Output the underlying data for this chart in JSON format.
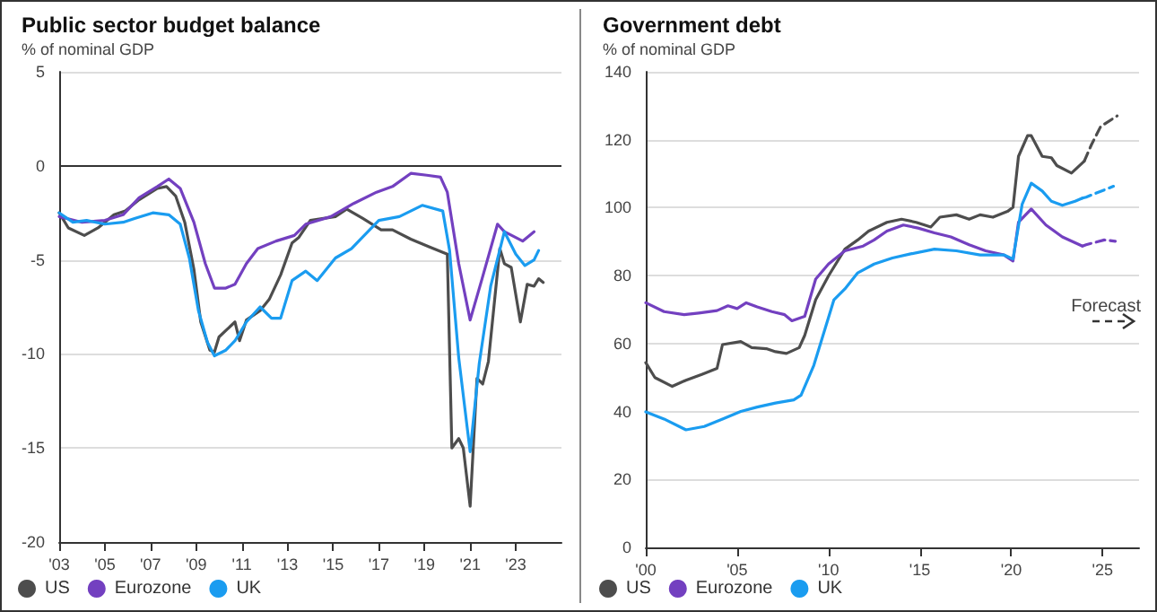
{
  "chart_data": [
    {
      "type": "line",
      "title": "Public sector budget balance",
      "subtitle": "% of nominal GDP",
      "xlim": [
        2003,
        2025
      ],
      "xticks": [
        {
          "value": 2003,
          "label": "'03"
        },
        {
          "value": 2005,
          "label": "'05"
        },
        {
          "value": 2007,
          "label": "'07"
        },
        {
          "value": 2009,
          "label": "'09"
        },
        {
          "value": 2011,
          "label": "'11"
        },
        {
          "value": 2013,
          "label": "'13"
        },
        {
          "value": 2015,
          "label": "'15"
        },
        {
          "value": 2017,
          "label": "'17"
        },
        {
          "value": 2019,
          "label": "'19"
        },
        {
          "value": 2021,
          "label": "'21"
        },
        {
          "value": 2023,
          "label": "'23"
        }
      ],
      "ylim": [
        -20,
        5
      ],
      "yticks": [
        -20,
        -15,
        -10,
        -5,
        0,
        5
      ],
      "grid": "y",
      "legend": "bottom left",
      "marker": "none",
      "line_style": "solid",
      "ref_lines": [
        {
          "axis": "y",
          "value": 0,
          "color": "#333333"
        }
      ],
      "series": [
        {
          "name": "US",
          "color": "#4d4d4d",
          "x": [
            2003.0,
            2003.4,
            2004.1,
            2004.7,
            2005.4,
            2005.9,
            2006.5,
            2007.3,
            2007.7,
            2008.1,
            2008.5,
            2008.9,
            2009.2,
            2009.6,
            2009.8,
            2010.0,
            2010.7,
            2010.9,
            2011.2,
            2011.8,
            2012.2,
            2012.7,
            2013.2,
            2013.5,
            2014.0,
            2015.1,
            2015.6,
            2016.3,
            2017.1,
            2017.6,
            2018.4,
            2019.2,
            2020.0,
            2020.2,
            2020.5,
            2020.7,
            2021.0,
            2021.3,
            2021.55,
            2021.8,
            2022.3,
            2022.5,
            2022.8,
            2023.2,
            2023.5,
            2023.8,
            2024.0,
            2024.2
          ],
          "values": [
            -2.5,
            -3.3,
            -3.7,
            -3.3,
            -2.6,
            -2.4,
            -1.8,
            -1.2,
            -1.1,
            -1.6,
            -3.0,
            -5.5,
            -8.3,
            -9.8,
            -9.9,
            -9.1,
            -8.3,
            -9.3,
            -8.2,
            -7.7,
            -7.1,
            -5.8,
            -4.1,
            -3.8,
            -2.9,
            -2.7,
            -2.3,
            -2.8,
            -3.4,
            -3.4,
            -3.9,
            -4.3,
            -4.7,
            -15.0,
            -14.5,
            -15.0,
            -18.1,
            -11.3,
            -11.6,
            -10.4,
            -4.4,
            -5.2,
            -5.4,
            -8.3,
            -6.3,
            -6.4,
            -6.0,
            -6.2
          ]
        },
        {
          "name": "Eurozone",
          "color": "#7340c0",
          "x": [
            2003.0,
            2004.0,
            2005.0,
            2005.8,
            2006.5,
            2007.3,
            2007.8,
            2008.3,
            2008.9,
            2009.4,
            2009.8,
            2010.3,
            2010.7,
            2011.2,
            2011.7,
            2012.5,
            2013.3,
            2013.8,
            2014.9,
            2015.9,
            2016.9,
            2017.6,
            2018.4,
            2019.1,
            2019.7,
            2020.0,
            2020.5,
            2021.0,
            2021.5,
            2022.2,
            2022.5,
            2023.3,
            2023.8
          ],
          "values": [
            -2.7,
            -3.0,
            -2.9,
            -2.6,
            -1.7,
            -1.1,
            -0.7,
            -1.2,
            -3.0,
            -5.2,
            -6.5,
            -6.5,
            -6.3,
            -5.2,
            -4.4,
            -4.0,
            -3.7,
            -3.1,
            -2.7,
            -2.0,
            -1.4,
            -1.1,
            -0.4,
            -0.5,
            -0.6,
            -1.4,
            -5.2,
            -8.2,
            -6.1,
            -3.1,
            -3.5,
            -4.0,
            -3.5
          ]
        },
        {
          "name": "UK",
          "color": "#1a9cf0",
          "x": [
            2003.0,
            2003.6,
            2004.2,
            2005.0,
            2005.8,
            2006.3,
            2007.1,
            2007.8,
            2008.3,
            2008.7,
            2009.1,
            2009.5,
            2009.8,
            2010.3,
            2010.7,
            2011.2,
            2011.8,
            2012.3,
            2012.7,
            2013.2,
            2013.8,
            2014.3,
            2015.1,
            2015.8,
            2017.0,
            2017.9,
            2018.9,
            2019.8,
            2020.1,
            2020.5,
            2021.0,
            2021.4,
            2021.9,
            2022.5,
            2023.0,
            2023.4,
            2023.8,
            2024.0
          ],
          "values": [
            -2.5,
            -3.0,
            -2.9,
            -3.1,
            -3.0,
            -2.8,
            -2.5,
            -2.6,
            -3.1,
            -4.9,
            -7.7,
            -9.4,
            -10.1,
            -9.8,
            -9.3,
            -8.3,
            -7.5,
            -8.1,
            -8.1,
            -6.1,
            -5.6,
            -6.1,
            -4.9,
            -4.4,
            -2.9,
            -2.7,
            -2.1,
            -2.4,
            -4.5,
            -10.2,
            -15.2,
            -10.5,
            -6.4,
            -3.5,
            -4.7,
            -5.3,
            -5.0,
            -4.5
          ]
        }
      ]
    },
    {
      "type": "line",
      "title": "Government debt",
      "subtitle": "% of nominal GDP",
      "xlim": [
        2000,
        2027
      ],
      "xticks": [
        {
          "value": 2000,
          "label": "'00"
        },
        {
          "value": 2005,
          "label": "'05"
        },
        {
          "value": 2010,
          "label": "'10"
        },
        {
          "value": 2015,
          "label": "'15"
        },
        {
          "value": 2020,
          "label": "'20"
        },
        {
          "value": 2025,
          "label": "'25"
        }
      ],
      "ylim": [
        0,
        140
      ],
      "yticks": [
        0,
        20,
        40,
        60,
        80,
        100,
        120,
        140
      ],
      "grid": "y",
      "legend": "bottom left",
      "marker": "none",
      "line_style": "solid",
      "annotations": [
        "Forecast"
      ],
      "series": [
        {
          "name": "US",
          "color": "#4d4d4d",
          "x": [
            2000.0,
            2000.5,
            2001.45,
            2002.2,
            2003.1,
            2003.9,
            2004.2,
            2005.2,
            2005.8,
            2006.6,
            2007.1,
            2007.7,
            2008.4,
            2008.7,
            2009.3,
            2010.0,
            2010.9,
            2011.6,
            2012.2,
            2013.2,
            2014.0,
            2014.8,
            2015.6,
            2016.1,
            2017.0,
            2017.7,
            2018.3,
            2019.0,
            2019.8,
            2020.1,
            2020.4,
            2020.9,
            2021.1,
            2021.7,
            2022.2,
            2022.5,
            2023.3,
            2024.0
          ],
          "values": [
            54.4,
            50,
            47.4,
            49.2,
            51,
            52.7,
            59.7,
            60.6,
            58.8,
            58.5,
            57.6,
            57.1,
            58.8,
            62.4,
            72.9,
            79.9,
            87.8,
            90.5,
            93.1,
            95.7,
            96.6,
            95.7,
            94.3,
            97.2,
            97.9,
            96.6,
            97.9,
            97.2,
            98.9,
            100.1,
            115.1,
            121.2,
            121.2,
            115.1,
            114.7,
            112.4,
            110.2,
            113.7
          ]
        },
        {
          "color": "#4d4d4d",
          "line_style": "dashed",
          "x": [
            2024.0,
            2024.4,
            2024.9,
            2025.8
          ],
          "values": [
            113.7,
            118.6,
            123.9,
            127
          ]
        },
        {
          "name": "Eurozone",
          "color": "#7340c0",
          "x": [
            2000.0,
            2001.0,
            2002.1,
            2002.9,
            2003.9,
            2004.5,
            2005.0,
            2005.5,
            2006.1,
            2006.9,
            2007.6,
            2008.0,
            2008.7,
            2009.3,
            2010.0,
            2010.9,
            2011.9,
            2012.5,
            2013.2,
            2014.1,
            2014.9,
            2015.8,
            2016.7,
            2017.7,
            2018.6,
            2019.6,
            2020.1,
            2020.4,
            2021.1,
            2021.9,
            2022.8,
            2023.9
          ],
          "values": [
            72,
            69.4,
            68.5,
            69,
            69.7,
            71.1,
            70.3,
            72,
            70.8,
            69.4,
            68.5,
            66.7,
            68,
            79,
            83.4,
            87.3,
            88.7,
            90.5,
            93.1,
            94.9,
            94,
            92.6,
            91.4,
            89.1,
            87.3,
            86.1,
            84.3,
            95.7,
            99.6,
            94.9,
            91.4,
            88.7
          ]
        },
        {
          "color": "#7340c0",
          "line_style": "dashed",
          "x": [
            2023.9,
            2024.1,
            2025.1,
            2025.7
          ],
          "values": [
            88.7,
            89.1,
            90.5,
            90.1
          ]
        },
        {
          "name": "UK",
          "color": "#1a9cf0",
          "x": [
            2000.0,
            2001.0,
            2002.2,
            2003.2,
            2004.2,
            2005.2,
            2006.1,
            2007.1,
            2008.1,
            2008.5,
            2009.2,
            2009.8,
            2010.3,
            2010.9,
            2011.6,
            2012.5,
            2013.5,
            2014.5,
            2015.8,
            2017.0,
            2018.3,
            2019.6,
            2020.1,
            2020.6,
            2021.1,
            2021.7,
            2022.2,
            2022.8,
            2023.5,
            2023.9
          ],
          "values": [
            39.9,
            37.8,
            34.6,
            35.6,
            37.8,
            40,
            41.3,
            42.5,
            43.4,
            44.8,
            53.6,
            64.1,
            72.9,
            76.1,
            80.8,
            83.4,
            85.2,
            86.4,
            87.8,
            87.3,
            86.1,
            86.1,
            84.9,
            101,
            107.2,
            104.9,
            101.9,
            100.7,
            101.9,
            102.8
          ]
        },
        {
          "color": "#1a9cf0",
          "line_style": "dashed",
          "x": [
            2023.9,
            2024.1,
            2025.6
          ],
          "values": [
            102.8,
            103.1,
            106.3
          ]
        }
      ]
    }
  ]
}
